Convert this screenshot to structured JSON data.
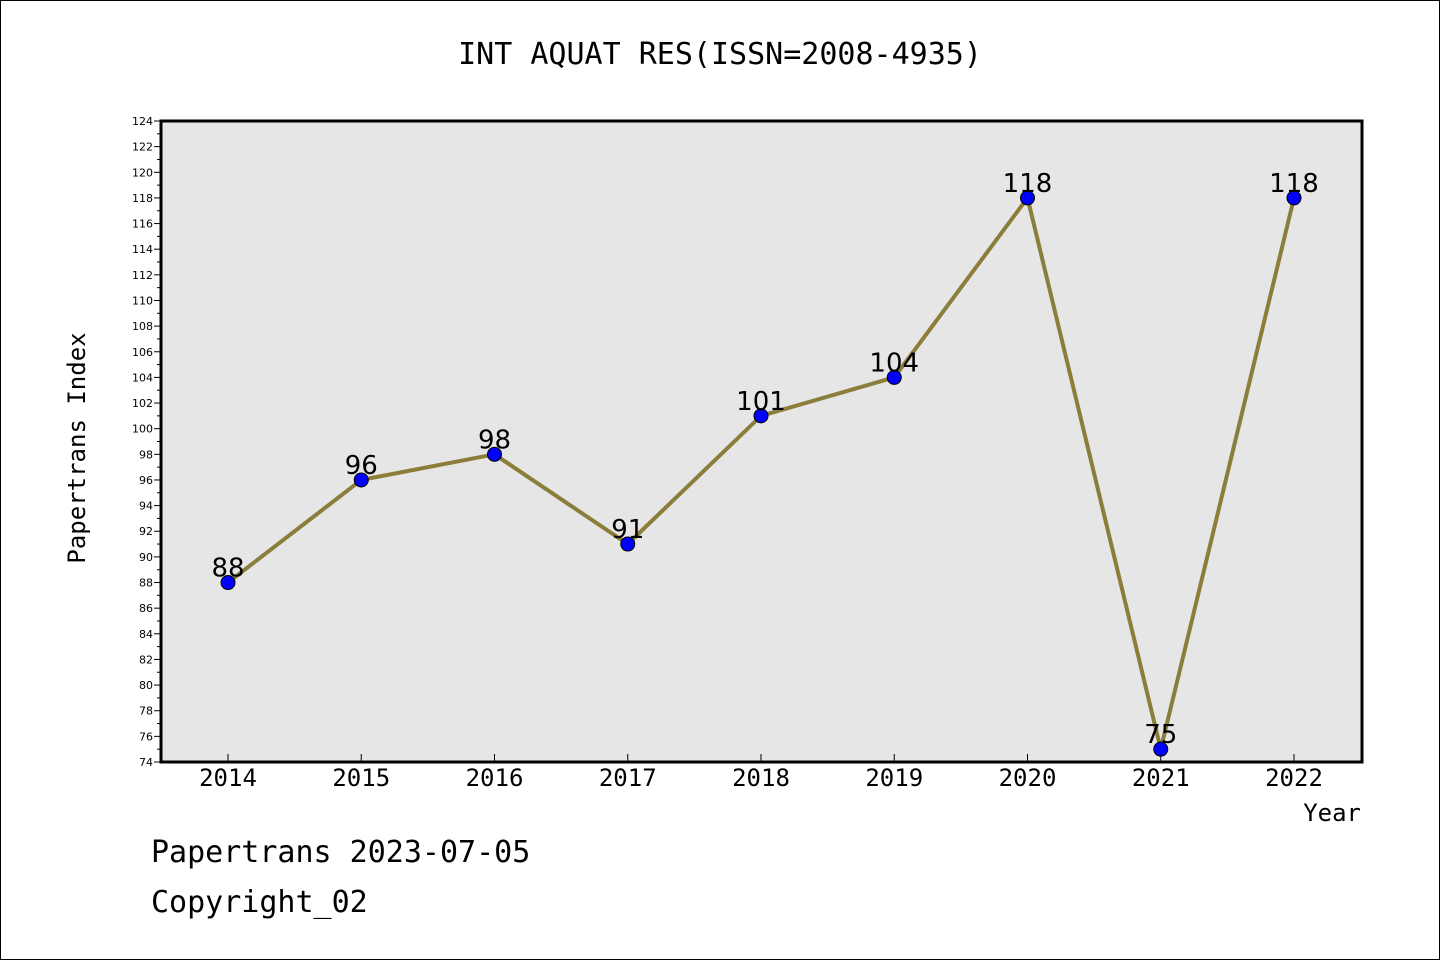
{
  "chart_data": {
    "type": "line",
    "title": "INT AQUAT RES(ISSN=2008-4935)",
    "xlabel": "Year",
    "ylabel": "Papertrans Index",
    "categories": [
      "2014",
      "2015",
      "2016",
      "2017",
      "2018",
      "2019",
      "2020",
      "2021",
      "2022"
    ],
    "series": [
      {
        "values": [
          88,
          96,
          98,
          91,
          101,
          104,
          118,
          75,
          118
        ]
      }
    ],
    "data_labels": [
      "88",
      "96",
      "98",
      "91",
      "101",
      "104",
      "118",
      "75",
      "118"
    ],
    "ylim": [
      74,
      124
    ],
    "y_ticks": [
      74,
      76,
      78,
      80,
      82,
      84,
      86,
      88,
      90,
      92,
      94,
      96,
      98,
      100,
      102,
      104,
      106,
      108,
      110,
      112,
      114,
      116,
      118,
      120,
      122,
      124
    ],
    "grid": false,
    "legend": "none",
    "colors": {
      "line": "#8b7d3a",
      "marker": "#0000ff",
      "plot_background": "#e6e6e6"
    }
  },
  "footer": {
    "line1": "Papertrans 2023-07-05",
    "line2": "Copyright_02"
  }
}
